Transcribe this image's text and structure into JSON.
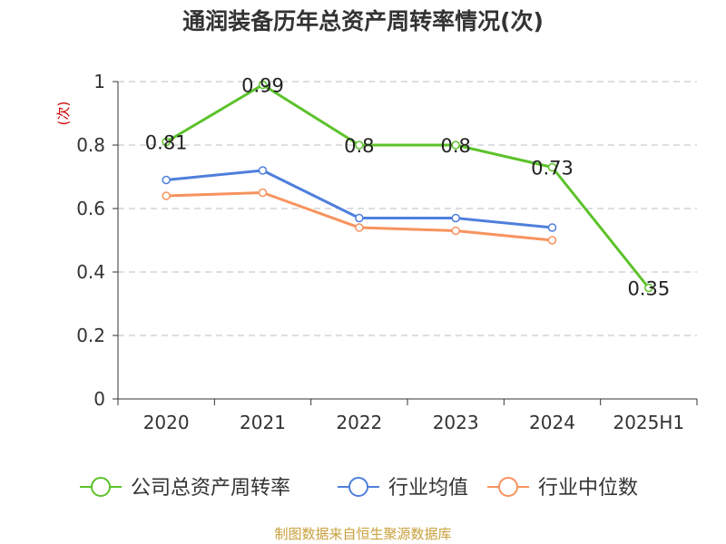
{
  "chart_data": {
    "type": "line",
    "title": "通润装备历年总资产周转率情况(次)",
    "ylabel": "(次)",
    "xlabel": "",
    "categories": [
      "2020",
      "2021",
      "2022",
      "2023",
      "2024",
      "2025H1"
    ],
    "ylim": [
      0,
      1
    ],
    "yticks": [
      0,
      0.2,
      0.4,
      0.6,
      0.8,
      1
    ],
    "ytick_labels": [
      "0",
      "0.2",
      "0.4",
      "0.6",
      "0.8",
      "1"
    ],
    "grid": true,
    "legend_position": "bottom",
    "series": [
      {
        "name": "公司总资产周转率",
        "color": "#5cc22b",
        "values": [
          0.81,
          0.99,
          0.8,
          0.8,
          0.73,
          0.35
        ],
        "labels": [
          "0.81",
          "0.99",
          "0.8",
          "0.8",
          "0.73",
          "0.35"
        ]
      },
      {
        "name": "行业均值",
        "color": "#4f7fdc",
        "values": [
          0.69,
          0.72,
          0.57,
          0.57,
          0.54,
          null
        ]
      },
      {
        "name": "行业中位数",
        "color": "#f7935e",
        "values": [
          0.64,
          0.65,
          0.54,
          0.53,
          0.5,
          null
        ]
      }
    ]
  },
  "footer": {
    "source": "制图数据来自恒生聚源数据库"
  }
}
